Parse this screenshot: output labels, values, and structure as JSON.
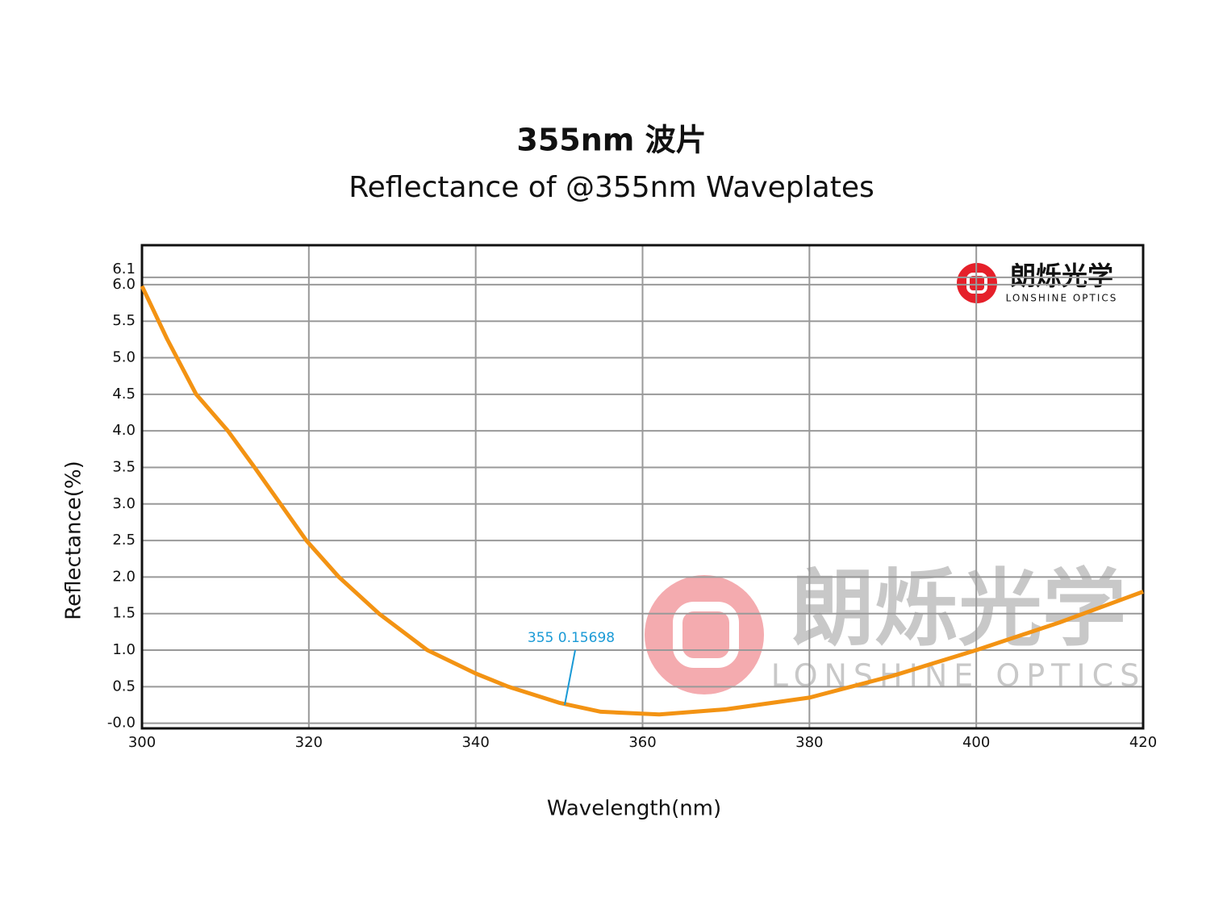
{
  "chart_data": {
    "type": "line",
    "title": "355nm 波片",
    "subtitle": "Reflectance of @355nm Waveplates",
    "x_label": "Wavelength(nm)",
    "y_label": "Reflectance(%)",
    "logo": {
      "name": "朗烁光学",
      "tagline": "LONSHINE OPTICS"
    },
    "annotation": "355 0.15698",
    "x": [
      300,
      303,
      306.5,
      310.3,
      313.5,
      316.6,
      319.7,
      323.6,
      328.4,
      334.2,
      340,
      343.9,
      350,
      355,
      362,
      370,
      380,
      390,
      400,
      410,
      420
    ],
    "series": [
      {
        "name": "Reflectance",
        "color": "#f39313",
        "values": [
          5.98,
          5.26,
          4.5,
          4.0,
          3.5,
          3.0,
          2.5,
          2.0,
          1.5,
          1.0,
          0.68,
          0.5,
          0.28,
          0.157,
          0.12,
          0.19,
          0.35,
          0.65,
          1.0,
          1.38,
          1.8
        ]
      }
    ],
    "xlim": [
      300,
      420
    ],
    "xticks": [
      300,
      320,
      340,
      360,
      380,
      400,
      420
    ],
    "ylim": [
      -0.07,
      6.54
    ],
    "yticks": [
      {
        "value": 0,
        "label": "-0.0"
      },
      0.5,
      {
        "value": 1,
        "label": "1.0"
      },
      1.5,
      {
        "value": 2,
        "label": "2.0"
      },
      2.5,
      {
        "value": 3,
        "label": "3.0"
      },
      3.5,
      {
        "value": 4,
        "label": "4.0"
      },
      4.5,
      {
        "value": 5,
        "label": "5.0"
      },
      5.5,
      {
        "value": 6,
        "label": "6.0"
      },
      6.1
    ],
    "grid": true
  }
}
